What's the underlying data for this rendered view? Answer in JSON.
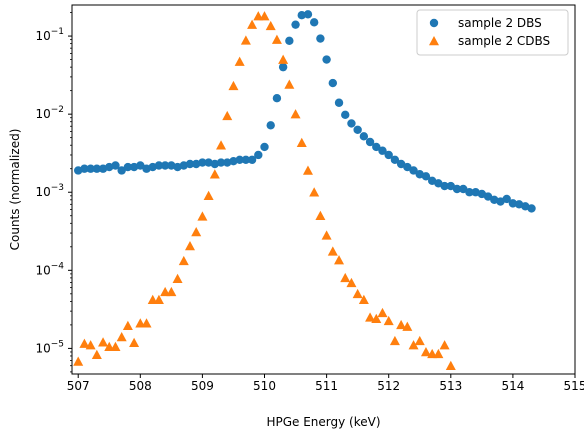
{
  "chart_data": {
    "type": "scatter",
    "xlabel": "HPGe Energy (keV)",
    "ylabel": "Counts (normalized)",
    "xlim": [
      506.9,
      515.0
    ],
    "ylim": [
      4.7e-06,
      0.25
    ],
    "yscale": "log",
    "grid": false,
    "legend_position": "top-right",
    "x_ticks": [
      {
        "value": 507,
        "label": "507"
      },
      {
        "value": 508,
        "label": "508"
      },
      {
        "value": 509,
        "label": "509"
      },
      {
        "value": 510,
        "label": "510"
      },
      {
        "value": 511,
        "label": "511"
      },
      {
        "value": 512,
        "label": "512"
      },
      {
        "value": 513,
        "label": "513"
      },
      {
        "value": 514,
        "label": "514"
      },
      {
        "value": 515,
        "label": "515"
      }
    ],
    "y_ticks": [
      {
        "value": 1e-05,
        "base": "10",
        "exp": "−5"
      },
      {
        "value": 0.0001,
        "base": "10",
        "exp": "−4"
      },
      {
        "value": 0.001,
        "base": "10",
        "exp": "−3"
      },
      {
        "value": 0.01,
        "base": "10",
        "exp": "−2"
      },
      {
        "value": 0.1,
        "base": "10",
        "exp": "−1"
      }
    ],
    "series": [
      {
        "name": "sample 2 DBS",
        "marker": "circle",
        "color": "#1f77b4",
        "points": [
          [
            507.0,
            0.0019
          ],
          [
            507.1,
            0.002
          ],
          [
            507.2,
            0.002
          ],
          [
            507.3,
            0.002
          ],
          [
            507.4,
            0.002
          ],
          [
            507.5,
            0.0021
          ],
          [
            507.6,
            0.0022
          ],
          [
            507.7,
            0.0019
          ],
          [
            507.8,
            0.0021
          ],
          [
            507.9,
            0.0021
          ],
          [
            508.0,
            0.0022
          ],
          [
            508.1,
            0.002
          ],
          [
            508.2,
            0.0021
          ],
          [
            508.3,
            0.0022
          ],
          [
            508.4,
            0.0022
          ],
          [
            508.5,
            0.0022
          ],
          [
            508.6,
            0.0021
          ],
          [
            508.7,
            0.0022
          ],
          [
            508.8,
            0.0023
          ],
          [
            508.9,
            0.0023
          ],
          [
            509.0,
            0.0024
          ],
          [
            509.1,
            0.0024
          ],
          [
            509.2,
            0.0023
          ],
          [
            509.3,
            0.0024
          ],
          [
            509.4,
            0.0024
          ],
          [
            509.5,
            0.0025
          ],
          [
            509.6,
            0.0026
          ],
          [
            509.7,
            0.0026
          ],
          [
            509.8,
            0.0026
          ],
          [
            509.9,
            0.003
          ],
          [
            510.0,
            0.0038
          ],
          [
            510.1,
            0.0072
          ],
          [
            510.2,
            0.016
          ],
          [
            510.3,
            0.04
          ],
          [
            510.4,
            0.087
          ],
          [
            510.5,
            0.14
          ],
          [
            510.6,
            0.185
          ],
          [
            510.7,
            0.19
          ],
          [
            510.8,
            0.15
          ],
          [
            510.9,
            0.093
          ],
          [
            511.0,
            0.05
          ],
          [
            511.1,
            0.025
          ],
          [
            511.2,
            0.014
          ],
          [
            511.3,
            0.0098
          ],
          [
            511.4,
            0.0076
          ],
          [
            511.5,
            0.0063
          ],
          [
            511.6,
            0.0052
          ],
          [
            511.7,
            0.0044
          ],
          [
            511.8,
            0.0038
          ],
          [
            511.9,
            0.0034
          ],
          [
            512.0,
            0.003
          ],
          [
            512.1,
            0.0026
          ],
          [
            512.2,
            0.0023
          ],
          [
            512.3,
            0.0021
          ],
          [
            512.4,
            0.0019
          ],
          [
            512.5,
            0.0017
          ],
          [
            512.6,
            0.0016
          ],
          [
            512.7,
            0.0014
          ],
          [
            512.8,
            0.0013
          ],
          [
            512.9,
            0.0012
          ],
          [
            513.0,
            0.0012
          ],
          [
            513.1,
            0.0011
          ],
          [
            513.2,
            0.0011
          ],
          [
            513.3,
            0.001
          ],
          [
            513.4,
            0.001
          ],
          [
            513.5,
            0.00095
          ],
          [
            513.6,
            0.00088
          ],
          [
            513.7,
            0.0008
          ],
          [
            513.8,
            0.00076
          ],
          [
            513.9,
            0.00082
          ],
          [
            514.0,
            0.00072
          ],
          [
            514.1,
            0.0007
          ],
          [
            514.2,
            0.00066
          ],
          [
            514.3,
            0.00062
          ]
        ]
      },
      {
        "name": "sample 2 CDBS",
        "marker": "triangle",
        "color": "#ff7f0e",
        "points": [
          [
            507.0,
            6.8e-06
          ],
          [
            507.1,
            1.15e-05
          ],
          [
            507.2,
            1.1e-05
          ],
          [
            507.3,
            8.3e-06
          ],
          [
            507.4,
            1.2e-05
          ],
          [
            507.5,
            1.05e-05
          ],
          [
            507.6,
            1.05e-05
          ],
          [
            507.7,
            1.4e-05
          ],
          [
            507.8,
            1.95e-05
          ],
          [
            507.9,
            1.18e-05
          ],
          [
            508.0,
            2.1e-05
          ],
          [
            508.1,
            2.1e-05
          ],
          [
            508.2,
            4.2e-05
          ],
          [
            508.3,
            4.2e-05
          ],
          [
            508.4,
            5.3e-05
          ],
          [
            508.5,
            5.3e-05
          ],
          [
            508.6,
            7.8e-05
          ],
          [
            508.7,
            0.000132
          ],
          [
            508.8,
            0.000205
          ],
          [
            508.9,
            0.00031
          ],
          [
            509.0,
            0.00049
          ],
          [
            509.1,
            0.0009
          ],
          [
            509.2,
            0.0017
          ],
          [
            509.3,
            0.004
          ],
          [
            509.4,
            0.0095
          ],
          [
            509.5,
            0.023
          ],
          [
            509.6,
            0.047
          ],
          [
            509.7,
            0.088
          ],
          [
            509.8,
            0.14
          ],
          [
            509.9,
            0.18
          ],
          [
            510.0,
            0.18
          ],
          [
            510.1,
            0.135
          ],
          [
            510.2,
            0.09
          ],
          [
            510.3,
            0.05
          ],
          [
            510.4,
            0.024
          ],
          [
            510.5,
            0.01
          ],
          [
            510.6,
            0.0043
          ],
          [
            510.7,
            0.0019
          ],
          [
            510.8,
            0.001
          ],
          [
            510.9,
            0.0005
          ],
          [
            511.0,
            0.00028
          ],
          [
            511.1,
            0.000175
          ],
          [
            511.2,
            0.000135
          ],
          [
            511.3,
            8e-05
          ],
          [
            511.4,
            6.9e-05
          ],
          [
            511.5,
            5e-05
          ],
          [
            511.6,
            4.2e-05
          ],
          [
            511.7,
            2.5e-05
          ],
          [
            511.8,
            2.4e-05
          ],
          [
            511.9,
            2.85e-05
          ],
          [
            512.0,
            2.25e-05
          ],
          [
            512.1,
            1.25e-05
          ],
          [
            512.2,
            2e-05
          ],
          [
            512.3,
            1.9e-05
          ],
          [
            512.4,
            1.1e-05
          ],
          [
            512.5,
            1.25e-05
          ],
          [
            512.6,
            9e-06
          ],
          [
            512.7,
            8.5e-06
          ],
          [
            512.8,
            8.5e-06
          ],
          [
            512.9,
            1.1e-05
          ],
          [
            513.0,
            6e-06
          ]
        ]
      }
    ]
  }
}
